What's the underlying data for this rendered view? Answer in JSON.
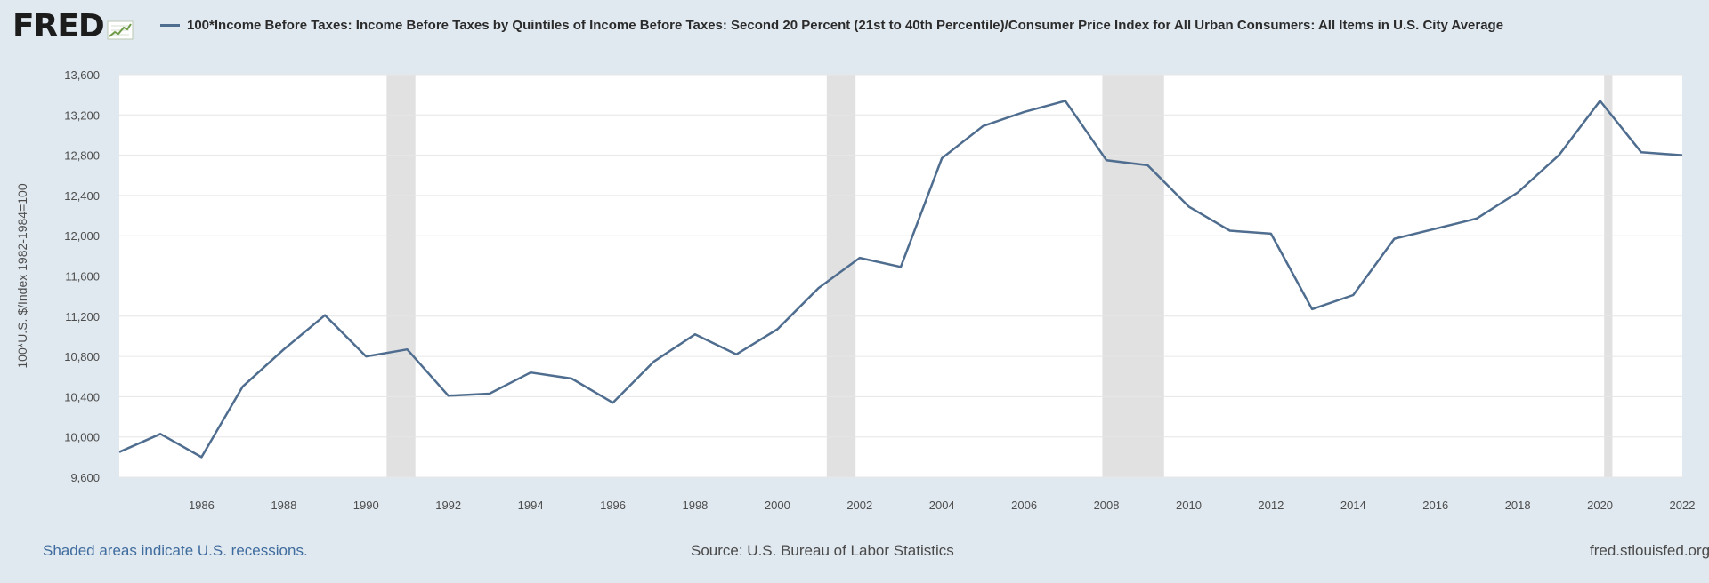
{
  "logo": {
    "text": "FRED"
  },
  "legend": {
    "text": "100*Income Before Taxes: Income Before Taxes by Quintiles of Income Before Taxes: Second 20 Percent (21st to 40th Percentile)/Consumer Price Index for All Urban Consumers: All Items in U.S. City Average"
  },
  "footer": {
    "note": "Shaded areas indicate U.S. recessions.",
    "source": "Source: U.S. Bureau of Labor Statistics",
    "url": "fred.stlouisfed.org"
  },
  "colors": {
    "background": "#e1e9f0",
    "plot_area": "#ffffff",
    "line": "#4f6d8f",
    "recession": "#e1e1e1",
    "grid": "#e6e6e6"
  },
  "chart_data": {
    "type": "line",
    "title": "",
    "xlabel": "",
    "ylabel": "100*U.S. $/Index 1982-1984=100",
    "ylim": [
      9600,
      13600
    ],
    "xlim": [
      1984,
      2022
    ],
    "y_ticks": [
      9600,
      10000,
      10400,
      10800,
      11200,
      11600,
      12000,
      12400,
      12800,
      13200,
      13600
    ],
    "y_tick_labels": [
      "9,600",
      "10,000",
      "10,400",
      "10,800",
      "11,200",
      "11,600",
      "12,000",
      "12,400",
      "12,800",
      "13,200",
      "13,600"
    ],
    "x_ticks": [
      1986,
      1988,
      1990,
      1992,
      1994,
      1996,
      1998,
      2000,
      2002,
      2004,
      2006,
      2008,
      2010,
      2012,
      2014,
      2016,
      2018,
      2020,
      2022
    ],
    "x_tick_labels": [
      "1986",
      "1988",
      "1990",
      "1992",
      "1994",
      "1996",
      "1998",
      "2000",
      "2002",
      "2004",
      "2006",
      "2008",
      "2010",
      "2012",
      "2014",
      "2016",
      "2018",
      "2020",
      "2022"
    ],
    "grid": true,
    "recessions": [
      [
        1990.5,
        1991.2
      ],
      [
        2001.2,
        2001.9
      ],
      [
        2007.9,
        2009.4
      ],
      [
        2020.1,
        2020.3
      ]
    ],
    "series": [
      {
        "x": [
          1984,
          1985,
          1986,
          1987,
          1988,
          1989,
          1990,
          1991,
          1992,
          1993,
          1994,
          1995,
          1996,
          1997,
          1998,
          1999,
          2000,
          2001,
          2002,
          2003,
          2004,
          2005,
          2006,
          2007,
          2008,
          2009,
          2010,
          2011,
          2012,
          2013,
          2014,
          2015,
          2016,
          2017,
          2018,
          2019,
          2020,
          2021,
          2022
        ],
        "values": [
          9850,
          10030,
          9800,
          10500,
          10870,
          11210,
          10800,
          10870,
          10410,
          10430,
          10640,
          10580,
          10340,
          10750,
          11020,
          10820,
          11070,
          11480,
          11780,
          11690,
          12770,
          13090,
          13230,
          13340,
          12750,
          12700,
          12290,
          12050,
          12020,
          11270,
          11410,
          11970,
          12070,
          12170,
          12430,
          12800,
          13340,
          12830,
          12800
        ]
      }
    ]
  }
}
